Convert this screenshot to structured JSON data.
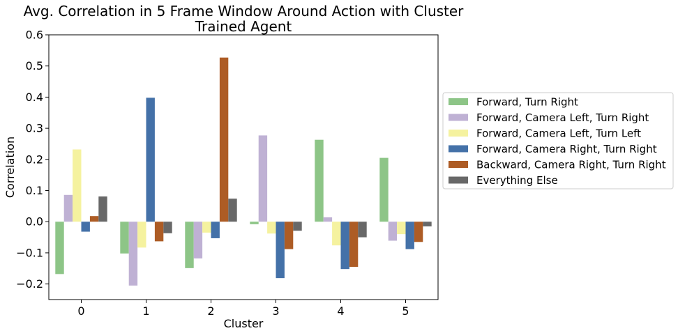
{
  "chart_data": {
    "type": "bar",
    "title_line1": "Avg. Correlation in 5 Frame Window Around Action with Cluster",
    "title_line2": "Trained Agent",
    "xlabel": "Cluster",
    "ylabel": "Correlation",
    "categories": [
      "0",
      "1",
      "2",
      "3",
      "4",
      "5"
    ],
    "ylim": [
      -0.25,
      0.6
    ],
    "yticks": [
      "−0.2",
      "−0.1",
      "0.0",
      "0.1",
      "0.2",
      "0.3",
      "0.4",
      "0.5",
      "0.6"
    ],
    "ytick_values": [
      -0.2,
      -0.1,
      0.0,
      0.1,
      0.2,
      0.3,
      0.4,
      0.5,
      0.6
    ],
    "grid": false,
    "legend_position": "right-outside",
    "series": [
      {
        "name": "Forward, Turn Right",
        "color": "#8dc587",
        "values": [
          -0.168,
          -0.102,
          -0.149,
          -0.008,
          0.263,
          0.205
        ]
      },
      {
        "name": "Forward, Camera Left, Turn Right",
        "color": "#bfb1d4",
        "values": [
          0.086,
          -0.205,
          -0.118,
          0.277,
          0.014,
          -0.061
        ]
      },
      {
        "name": "Forward, Camera Left, Turn Left",
        "color": "#f5f29f",
        "values": [
          0.232,
          -0.083,
          -0.035,
          -0.038,
          -0.076,
          -0.04
        ]
      },
      {
        "name": "Forward, Camera Right, Turn Right",
        "color": "#4471a8",
        "values": [
          -0.032,
          0.398,
          -0.053,
          -0.181,
          -0.152,
          -0.088
        ]
      },
      {
        "name": "Backward, Camera Right, Turn Right",
        "color": "#ad5c25",
        "values": [
          0.018,
          -0.063,
          0.527,
          -0.088,
          -0.145,
          -0.065
        ]
      },
      {
        "name": "Everything Else",
        "color": "#686868",
        "values": [
          0.081,
          -0.037,
          0.074,
          -0.029,
          -0.05,
          -0.015
        ]
      }
    ]
  }
}
